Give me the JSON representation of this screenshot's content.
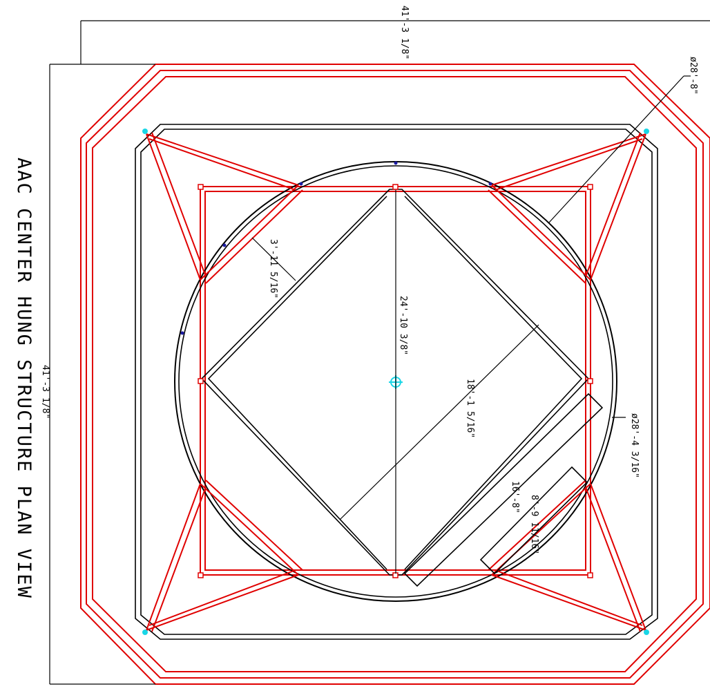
{
  "title": "AAC CENTER HUNG STRUCTURE PLAN VIEW",
  "dimensions": {
    "overall_width": "41'-3 1/8\"",
    "overall_height": "41'-3 1/8\"",
    "ring_outer_diameter": "ø28'-8\"",
    "ring_inner_diameter": "ø28'-4 3/16\"",
    "center_span": "24'-10 3/8\"",
    "diamond_diagonal": "18'-1 5/16\"",
    "corner_offset": "3'-11 5/16\"",
    "long_panel": "16'-8\"",
    "short_panel": "8'-9 11/16\""
  },
  "colors": {
    "structure_red": "#e00000",
    "outline_black": "#000000",
    "marker_cyan": "#19d6e6",
    "node_blue": "#1a1aa0"
  }
}
